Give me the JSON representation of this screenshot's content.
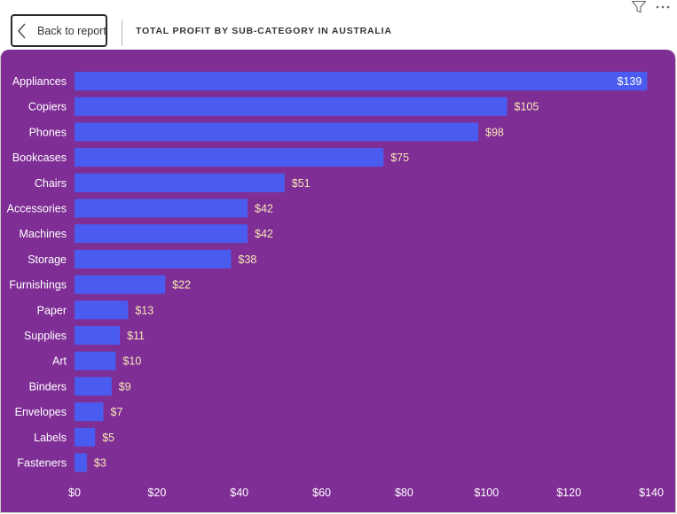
{
  "header": {
    "back_label": "Back to report",
    "title": "TOTAL PROFIT BY SUB-CATEGORY IN AUSTRALIA"
  },
  "toolbar": {
    "filter_icon": "filter-icon",
    "more_icon": "more-options-icon"
  },
  "colors": {
    "panel": "#7f2e95",
    "bar": "#4a5cf0",
    "text": "#ffffff",
    "data_label": "#f5e6b4"
  },
  "chart_data": {
    "type": "bar",
    "orientation": "horizontal",
    "title": "",
    "xlabel": "",
    "ylabel": "",
    "categories": [
      "Appliances",
      "Copiers",
      "Phones",
      "Bookcases",
      "Chairs",
      "Accessories",
      "Machines",
      "Storage",
      "Furnishings",
      "Paper",
      "Supplies",
      "Art",
      "Binders",
      "Envelopes",
      "Labels",
      "Fasteners"
    ],
    "values": [
      139,
      105,
      98,
      75,
      51,
      42,
      42,
      38,
      22,
      13,
      11,
      10,
      9,
      7,
      5,
      3
    ],
    "data_labels": [
      "$139",
      "$105",
      "$98",
      "$75",
      "$51",
      "$42",
      "$42",
      "$38",
      "$22",
      "$13",
      "$11",
      "$10",
      "$9",
      "$7",
      "$5",
      "$3"
    ],
    "xlim": [
      0,
      140
    ],
    "x_ticks": [
      0,
      20,
      40,
      60,
      80,
      100,
      120,
      140
    ],
    "x_tick_labels": [
      "$0",
      "$20",
      "$40",
      "$60",
      "$80",
      "$100",
      "$120",
      "$140"
    ],
    "grid": false,
    "legend": "none"
  }
}
